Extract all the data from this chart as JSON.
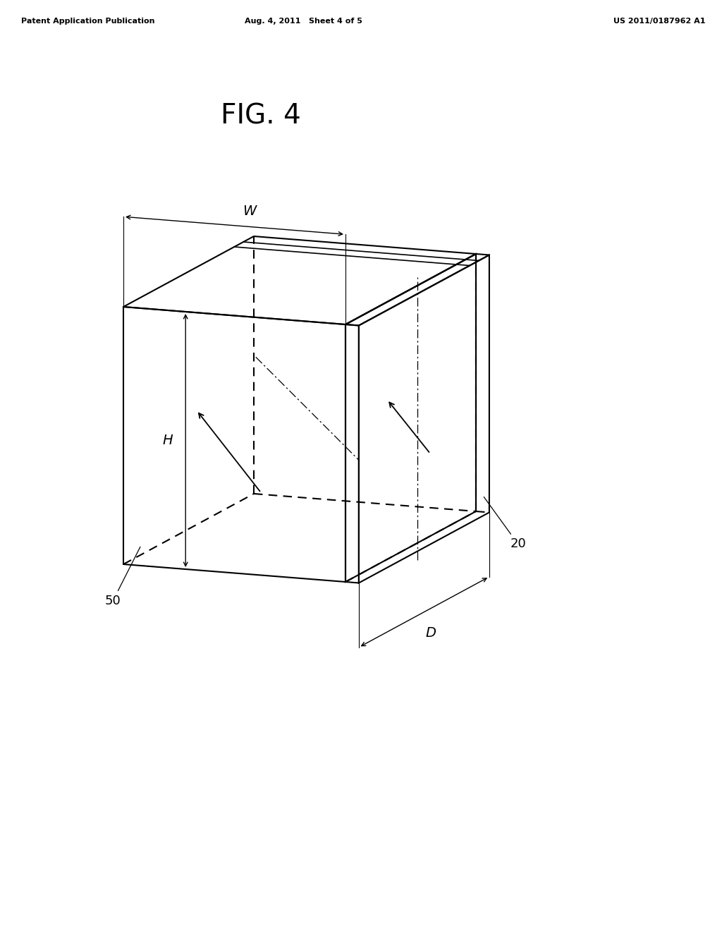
{
  "title": "FIG. 4",
  "patent_header_left": "Patent Application Publication",
  "patent_header_mid": "Aug. 4, 2011   Sheet 4 of 5",
  "patent_header_right": "US 2011/0187962 A1",
  "bg_color": "#ffffff",
  "line_color": "#000000",
  "label_50": "50",
  "label_20": "20",
  "label_W": "W",
  "label_H": "H",
  "label_D": "D"
}
